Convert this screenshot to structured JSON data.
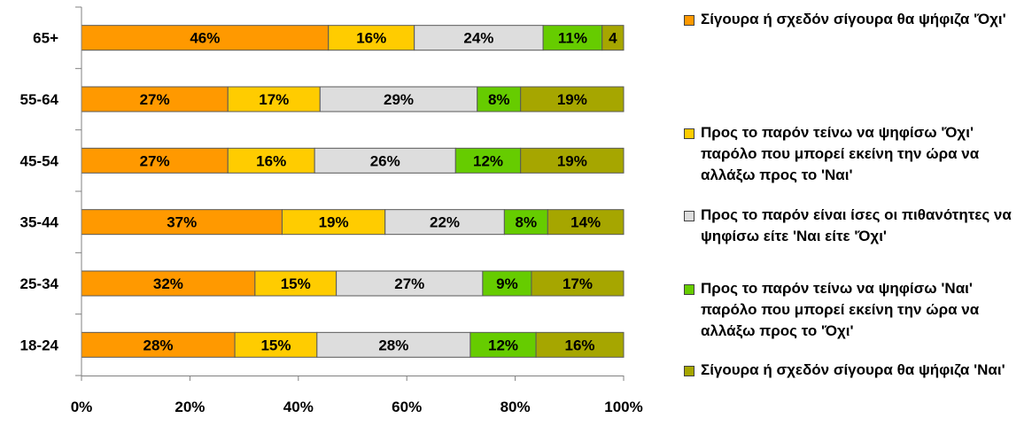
{
  "chart_data": {
    "type": "bar",
    "orientation": "horizontal",
    "stacked": true,
    "percent_stacked": true,
    "categories": [
      "65+",
      "55-64",
      "45-54",
      "35-44",
      "25-34",
      "18-24"
    ],
    "series": [
      {
        "name": "Σίγουρα ή σχεδόν σίγουρα θα ψήφιζα 'Όχι'",
        "color": "#ff9900",
        "values": [
          46,
          27,
          27,
          37,
          32,
          28
        ],
        "labels": [
          "46%",
          "27%",
          "27%",
          "37%",
          "32%",
          "28%"
        ]
      },
      {
        "name": "Προς το παρόν τείνω να ψηφίσω 'Όχι' παρόλο που μπορεί εκείνη την ώρα να αλλάξω προς το 'Ναι'",
        "color": "#ffcc00",
        "values": [
          16,
          17,
          16,
          19,
          15,
          15
        ],
        "labels": [
          "16%",
          "17%",
          "16%",
          "19%",
          "15%",
          "15%"
        ]
      },
      {
        "name": "Προς το παρόν είναι ίσες οι πιθανότητες να ψηφίσω είτε 'Ναι είτε 'Όχι'",
        "color": "#dddddd",
        "values": [
          24,
          29,
          26,
          22,
          27,
          28
        ],
        "labels": [
          "24%",
          "29%",
          "26%",
          "22%",
          "27%",
          "28%"
        ]
      },
      {
        "name": "Προς το παρόν τείνω να ψηφίσω 'Ναι' παρόλο που μπορεί εκείνη την ώρα να αλλάξω προς το 'Όχι'",
        "color": "#66cc00",
        "values": [
          11,
          8,
          12,
          8,
          9,
          12
        ],
        "labels": [
          "11%",
          "8%",
          "12%",
          "8%",
          "9%",
          "12%"
        ]
      },
      {
        "name": "Σίγουρα ή σχεδόν σίγουρα θα ψήφιζα 'Ναι'",
        "color": "#a6a600",
        "values": [
          4,
          19,
          19,
          14,
          17,
          16
        ],
        "labels": [
          "4",
          "19%",
          "19%",
          "14%",
          "17%",
          "16%"
        ]
      }
    ],
    "x_ticks": [
      "0%",
      "20%",
      "40%",
      "60%",
      "80%",
      "100%"
    ],
    "xlim": [
      0,
      100
    ],
    "grid": false,
    "legend_position": "right"
  }
}
